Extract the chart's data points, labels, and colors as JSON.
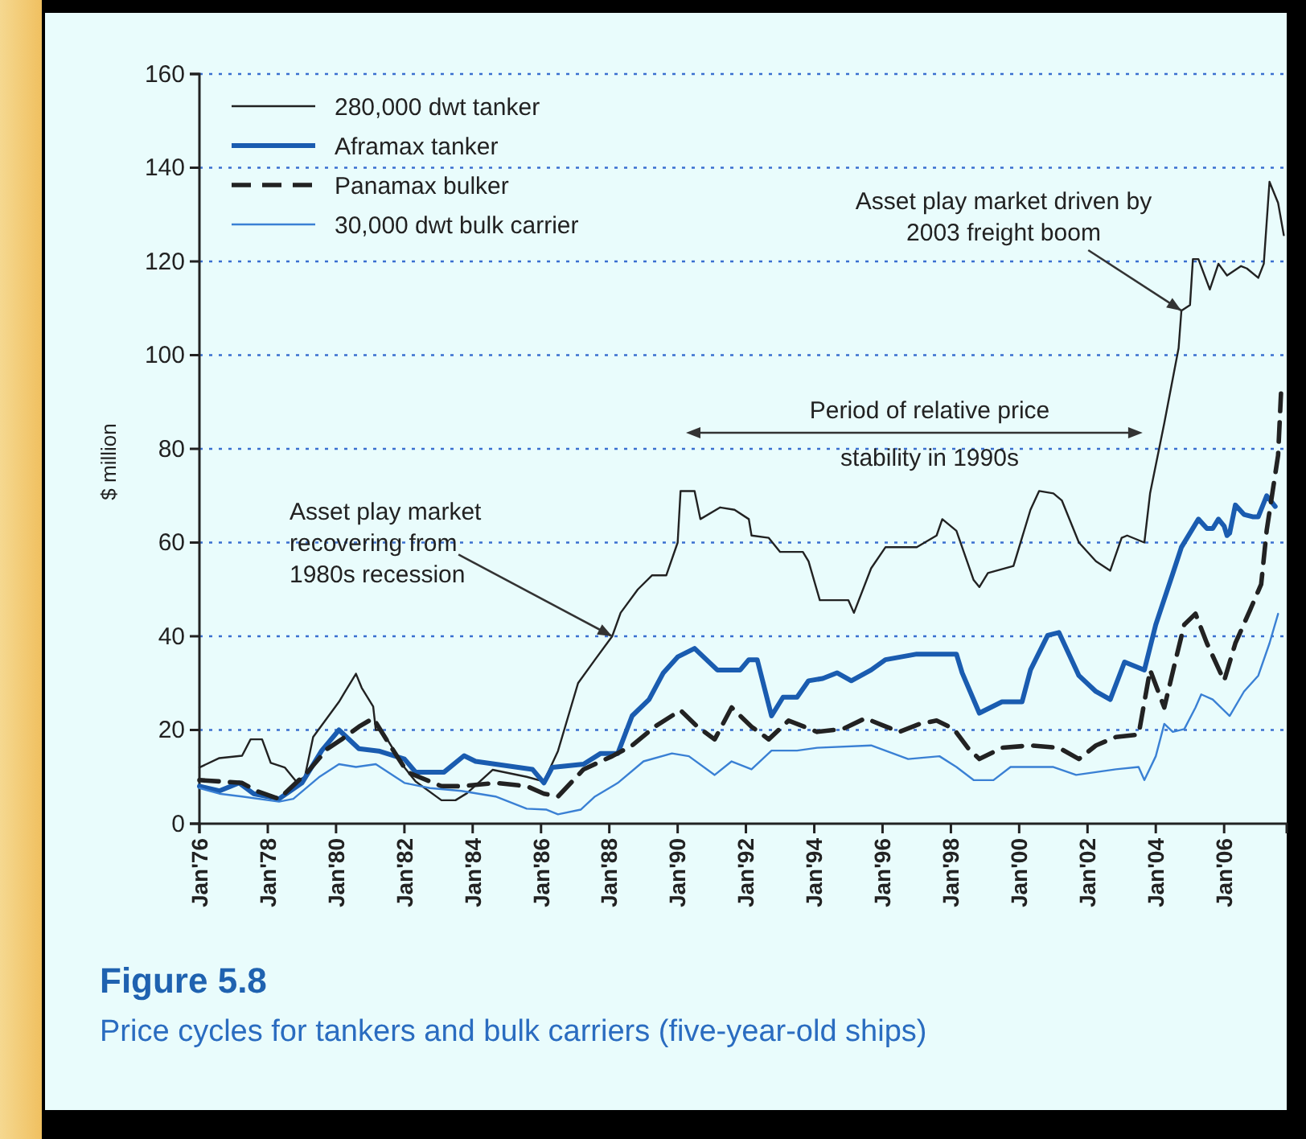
{
  "chart_data": {
    "type": "line",
    "title": "Figure 5.8",
    "subtitle": "Price cycles for tankers and bulk carriers (five-year-old ships)",
    "ylabel": "$ million",
    "xlim": [
      "1976-01",
      "2007-11"
    ],
    "ylim": [
      0,
      160
    ],
    "xticks": [
      {
        "value": "1976-01",
        "label": "Jan'76"
      },
      {
        "value": "1978-01",
        "label": "Jan'78"
      },
      {
        "value": "1980-01",
        "label": "Jan'80"
      },
      {
        "value": "1982-01",
        "label": "Jan'82"
      },
      {
        "value": "1984-01",
        "label": "Jan'84"
      },
      {
        "value": "1986-01",
        "label": "Jan'86"
      },
      {
        "value": "1988-01",
        "label": "Jan'88"
      },
      {
        "value": "1990-01",
        "label": "Jan'90"
      },
      {
        "value": "1992-01",
        "label": "Jan'92"
      },
      {
        "value": "1994-01",
        "label": "Jan'94"
      },
      {
        "value": "1996-01",
        "label": "Jan'96"
      },
      {
        "value": "1998-01",
        "label": "Jan'98"
      },
      {
        "value": "2000-01",
        "label": "Jan'00"
      },
      {
        "value": "2002-01",
        "label": "Jan'02"
      },
      {
        "value": "2004-01",
        "label": "Jan'04"
      },
      {
        "value": "2006-01",
        "label": "Jan'06"
      }
    ],
    "yticks": [
      0,
      20,
      40,
      60,
      80,
      100,
      120,
      140,
      160
    ],
    "grid": "y",
    "legend": "top left",
    "series": [
      {
        "name": "280,000 dwt tanker",
        "color": "#222222",
        "x": [
          "1976-01",
          "1976-08",
          "1977-04",
          "1977-07",
          "1977-11",
          "1978-02",
          "1978-07",
          "1978-11",
          "1979-02",
          "1979-05",
          "1980-02",
          "1980-04",
          "1980-08",
          "1980-10",
          "1981-02",
          "1981-03",
          "1981-05",
          "1982-01",
          "1982-05",
          "1983-02",
          "1983-07",
          "1983-11",
          "1984-08",
          "1985-08",
          "1986-02",
          "1986-07",
          "1987-02",
          "1987-08",
          "1988-02",
          "1988-05",
          "1988-11",
          "1989-04",
          "1989-09",
          "1990-01",
          "1990-02",
          "1990-07",
          "1990-09",
          "1991-04",
          "1991-09",
          "1992-02",
          "1992-03",
          "1992-09",
          "1993-01",
          "1993-09",
          "1993-11",
          "1994-03",
          "1995-01",
          "1995-03",
          "1995-09",
          "1996-02",
          "1997-01",
          "1997-08",
          "1997-10",
          "1998-03",
          "1998-09",
          "1998-11",
          "1999-02",
          "1999-11",
          "2000-05",
          "2000-08",
          "2001-01",
          "2001-04",
          "2001-10",
          "2002-04",
          "2002-09",
          "2003-01",
          "2003-03",
          "2003-09",
          "2003-11",
          "2004-04",
          "2004-09",
          "2004-10",
          "2005-01",
          "2005-02",
          "2005-04",
          "2005-08",
          "2005-11",
          "2006-02",
          "2006-07",
          "2006-09",
          "2007-01",
          "2007-03",
          "2007-05",
          "2007-08",
          "2007-10"
        ],
        "values": [
          12,
          14,
          14.5,
          18,
          18,
          13,
          12,
          9,
          10,
          18.5,
          26,
          28,
          32,
          29,
          25,
          20,
          20,
          12,
          9,
          5,
          5,
          6.5,
          11.5,
          10,
          9,
          15.5,
          30,
          35,
          40,
          45,
          50,
          53,
          53,
          60,
          71,
          71,
          65,
          67.5,
          67,
          65,
          61.5,
          61,
          58,
          58,
          56,
          47.7,
          47.7,
          45,
          54.5,
          59,
          59,
          61.5,
          65,
          62.5,
          52,
          50.5,
          53.5,
          55,
          67,
          71,
          70.5,
          69,
          60,
          56,
          54,
          61,
          61.5,
          60,
          70.5,
          85.5,
          101.5,
          109.5,
          110.7,
          120.5,
          120.5,
          114,
          119.5,
          117,
          119,
          118.5,
          116.5,
          119.5,
          137,
          132.5,
          125.6
        ]
      },
      {
        "name": "Aframax tanker",
        "color": "#1a5cb0",
        "x": [
          "1976-01",
          "1976-08",
          "1977-03",
          "1977-08",
          "1978-05",
          "1979-01",
          "1979-08",
          "1980-02",
          "1980-09",
          "1981-04",
          "1982-01",
          "1982-05",
          "1983-03",
          "1983-10",
          "1984-02",
          "1985-10",
          "1986-02",
          "1986-05",
          "1987-04",
          "1987-10",
          "1988-04",
          "1988-09",
          "1989-03",
          "1989-08",
          "1990-01",
          "1990-07",
          "1991-03",
          "1991-11",
          "1992-02",
          "1992-05",
          "1992-10",
          "1993-02",
          "1993-07",
          "1993-11",
          "1994-04",
          "1994-09",
          "1995-02",
          "1995-09",
          "1996-02",
          "1997-01",
          "1998-03",
          "1998-05",
          "1998-11",
          "1999-07",
          "2000-02",
          "2000-05",
          "2000-11",
          "2001-03",
          "2001-10",
          "2002-04",
          "2002-09",
          "2003-02",
          "2003-09",
          "2004-01",
          "2004-07",
          "2004-10",
          "2005-04",
          "2005-07",
          "2005-09",
          "2005-11",
          "2006-01",
          "2006-02",
          "2006-03",
          "2006-05",
          "2006-08",
          "2006-11",
          "2007-01",
          "2007-04",
          "2007-07"
        ],
        "values": [
          8,
          7,
          8.7,
          6.4,
          5.3,
          8.7,
          15.6,
          20,
          16,
          15.5,
          13.8,
          11,
          11,
          14.5,
          13.3,
          11.6,
          8.7,
          12,
          12.7,
          15,
          15,
          23,
          26.5,
          32.2,
          35.6,
          37.4,
          32.8,
          32.8,
          35,
          35,
          23,
          27,
          27,
          30.5,
          31,
          32.2,
          30.5,
          32.8,
          35,
          36.2,
          36.2,
          32.2,
          23.6,
          26,
          26,
          32.8,
          40.2,
          40.8,
          31.6,
          28.2,
          26.5,
          34.5,
          32.8,
          42.5,
          53.4,
          59,
          65,
          63,
          63,
          65,
          63.5,
          61.5,
          62,
          68,
          66,
          65.5,
          65.5,
          70,
          67.7
        ]
      },
      {
        "name": "Panamax bulker",
        "color": "#222222",
        "line_style": "dashed",
        "x": [
          "1976-01",
          "1977-04",
          "1977-09",
          "1978-05",
          "1979-03",
          "1979-10",
          "1980-03",
          "1980-09",
          "1981-02",
          "1981-08",
          "1982-02",
          "1983-02",
          "1983-09",
          "1984-09",
          "1985-08",
          "1986-02",
          "1986-07",
          "1987-04",
          "1988-02",
          "1988-09",
          "1989-05",
          "1990-02",
          "1990-08",
          "1991-02",
          "1991-08",
          "1992-03",
          "1992-09",
          "1993-04",
          "1994-02",
          "1994-11",
          "1995-07",
          "1996-01",
          "1996-07",
          "1997-02",
          "1997-08",
          "1998-02",
          "1998-07",
          "1998-11",
          "1999-07",
          "2000-05",
          "2001-03",
          "2001-10",
          "2002-04",
          "2002-11",
          "2003-07",
          "2003-11",
          "2004-04",
          "2004-08",
          "2004-11",
          "2005-03",
          "2005-07",
          "2006-01",
          "2006-05",
          "2006-10",
          "2007-02",
          "2007-04",
          "2007-08",
          "2007-09"
        ],
        "values": [
          9.3,
          8.7,
          7,
          5.3,
          11,
          16,
          18,
          20.7,
          22.5,
          16.7,
          11,
          8,
          8,
          8.7,
          8,
          6.4,
          5.8,
          11.6,
          14.4,
          16.7,
          20.7,
          24.2,
          20.7,
          18,
          24.8,
          20.7,
          18,
          22,
          19.6,
          20.2,
          22.5,
          21,
          19.6,
          21.3,
          22,
          20.2,
          16.2,
          13.8,
          16.2,
          16.7,
          16.2,
          13.8,
          16.7,
          18.5,
          19,
          32.8,
          24.8,
          35,
          42.5,
          44.8,
          38.5,
          30.5,
          38.5,
          45.4,
          51.1,
          62.6,
          78.6,
          91.8
        ]
      },
      {
        "name": "30,000 dwt bulk carrier",
        "color": "#3a80d4",
        "x": [
          "1976-01",
          "1976-08",
          "1977-04",
          "1978-05",
          "1978-10",
          "1979-07",
          "1980-02",
          "1980-08",
          "1981-03",
          "1982-01",
          "1982-10",
          "1983-09",
          "1984-09",
          "1985-08",
          "1986-03",
          "1986-07",
          "1987-03",
          "1987-08",
          "1988-04",
          "1989-01",
          "1989-11",
          "1990-05",
          "1991-02",
          "1991-08",
          "1992-03",
          "1992-10",
          "1993-07",
          "1994-02",
          "1995-09",
          "1996-10",
          "1997-09",
          "1998-03",
          "1998-09",
          "1999-04",
          "1999-10",
          "2001-01",
          "2001-09",
          "2002-11",
          "2003-07",
          "2003-09",
          "2004-01",
          "2004-04",
          "2004-07",
          "2004-11",
          "2005-03",
          "2005-05",
          "2005-09",
          "2006-03",
          "2006-08",
          "2007-01",
          "2007-05",
          "2007-08"
        ],
        "values": [
          7.6,
          6.4,
          5.8,
          4.7,
          5.3,
          9.9,
          12.7,
          12.1,
          12.7,
          8.7,
          7.6,
          7,
          5.8,
          3.2,
          3,
          2,
          3,
          5.8,
          8.7,
          13.3,
          15,
          14.4,
          10.4,
          13.3,
          11.6,
          15.6,
          15.6,
          16.2,
          16.7,
          13.8,
          14.4,
          12.1,
          9.3,
          9.3,
          12.1,
          12.1,
          10.4,
          11.6,
          12.1,
          9.3,
          14.4,
          21.3,
          19.6,
          20.2,
          24.8,
          27.6,
          26.5,
          23,
          28.2,
          31.6,
          38.5,
          44.8
        ]
      }
    ],
    "annotations": [
      {
        "text": "Asset play market recovering from 1980s recession",
        "x": "1988-02",
        "y": 40
      },
      "Period of relative price stability in 1990s",
      {
        "text": "Asset play market driven by 2003 freight boom",
        "x": "2004-10",
        "y": 109.5
      }
    ]
  }
}
